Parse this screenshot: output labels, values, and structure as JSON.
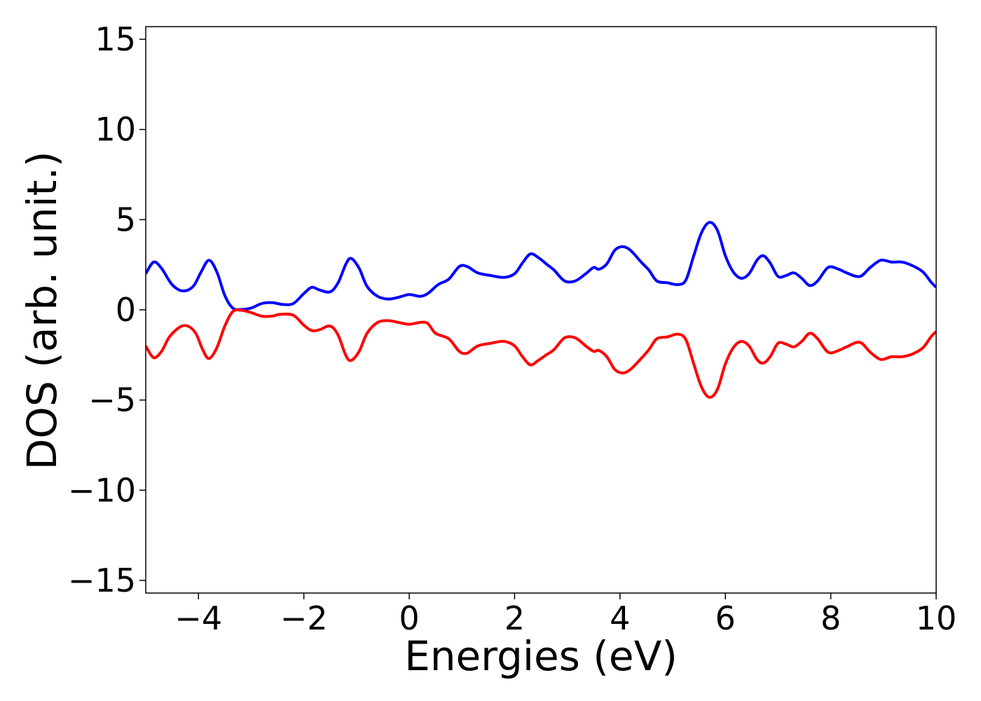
{
  "chart_data": {
    "type": "line",
    "title": "",
    "xlabel": "Energies (eV)",
    "ylabel": "DOS (arb. unit.)",
    "xlim": [
      -5,
      10
    ],
    "ylim": [
      -15.7,
      15.7
    ],
    "xticks": [
      -4,
      -2,
      0,
      2,
      4,
      6,
      8,
      10
    ],
    "yticks": [
      -15,
      -10,
      -5,
      0,
      5,
      10,
      15
    ],
    "xtick_labels": [
      "−4",
      "−2",
      "0",
      "2",
      "4",
      "6",
      "8",
      "10"
    ],
    "ytick_labels": [
      "−15",
      "−10",
      "−5",
      "0",
      "5",
      "10",
      "15"
    ],
    "grid": false,
    "legend": "none",
    "colors": {
      "spin_up": "#0000ff",
      "spin_down": "#ff0000",
      "axes": "#000000",
      "background": "#ffffff"
    },
    "series": [
      {
        "color": "#0000ff",
        "points": [
          [
            -5.0,
            2.0
          ],
          [
            -4.85,
            2.65
          ],
          [
            -4.7,
            2.3
          ],
          [
            -4.5,
            1.4
          ],
          [
            -4.3,
            1.05
          ],
          [
            -4.1,
            1.3
          ],
          [
            -3.95,
            2.1
          ],
          [
            -3.8,
            2.75
          ],
          [
            -3.65,
            2.1
          ],
          [
            -3.5,
            0.8
          ],
          [
            -3.35,
            0.1
          ],
          [
            -3.2,
            0.02
          ],
          [
            -3.0,
            0.1
          ],
          [
            -2.8,
            0.35
          ],
          [
            -2.6,
            0.4
          ],
          [
            -2.4,
            0.3
          ],
          [
            -2.2,
            0.35
          ],
          [
            -2.0,
            0.9
          ],
          [
            -1.85,
            1.25
          ],
          [
            -1.7,
            1.1
          ],
          [
            -1.5,
            1.0
          ],
          [
            -1.35,
            1.5
          ],
          [
            -1.2,
            2.55
          ],
          [
            -1.1,
            2.85
          ],
          [
            -0.95,
            2.3
          ],
          [
            -0.8,
            1.3
          ],
          [
            -0.6,
            0.75
          ],
          [
            -0.4,
            0.6
          ],
          [
            -0.2,
            0.7
          ],
          [
            0.0,
            0.85
          ],
          [
            0.2,
            0.75
          ],
          [
            0.35,
            0.9
          ],
          [
            0.55,
            1.4
          ],
          [
            0.75,
            1.7
          ],
          [
            0.95,
            2.4
          ],
          [
            1.1,
            2.4
          ],
          [
            1.3,
            2.05
          ],
          [
            1.55,
            1.9
          ],
          [
            1.8,
            1.8
          ],
          [
            2.0,
            2.0
          ],
          [
            2.15,
            2.6
          ],
          [
            2.3,
            3.1
          ],
          [
            2.45,
            2.9
          ],
          [
            2.6,
            2.55
          ],
          [
            2.75,
            2.2
          ],
          [
            2.95,
            1.6
          ],
          [
            3.15,
            1.6
          ],
          [
            3.35,
            2.0
          ],
          [
            3.5,
            2.35
          ],
          [
            3.6,
            2.25
          ],
          [
            3.75,
            2.55
          ],
          [
            3.9,
            3.3
          ],
          [
            4.05,
            3.5
          ],
          [
            4.2,
            3.3
          ],
          [
            4.4,
            2.65
          ],
          [
            4.55,
            2.2
          ],
          [
            4.7,
            1.6
          ],
          [
            4.9,
            1.5
          ],
          [
            5.1,
            1.4
          ],
          [
            5.25,
            1.65
          ],
          [
            5.4,
            3.0
          ],
          [
            5.55,
            4.3
          ],
          [
            5.7,
            4.85
          ],
          [
            5.85,
            4.4
          ],
          [
            6.0,
            3.0
          ],
          [
            6.15,
            2.1
          ],
          [
            6.3,
            1.75
          ],
          [
            6.45,
            2.0
          ],
          [
            6.6,
            2.75
          ],
          [
            6.72,
            3.0
          ],
          [
            6.85,
            2.6
          ],
          [
            7.0,
            1.85
          ],
          [
            7.15,
            1.9
          ],
          [
            7.3,
            2.05
          ],
          [
            7.45,
            1.75
          ],
          [
            7.6,
            1.35
          ],
          [
            7.75,
            1.6
          ],
          [
            7.95,
            2.35
          ],
          [
            8.15,
            2.25
          ],
          [
            8.3,
            2.05
          ],
          [
            8.55,
            1.85
          ],
          [
            8.75,
            2.35
          ],
          [
            8.95,
            2.75
          ],
          [
            9.15,
            2.65
          ],
          [
            9.35,
            2.65
          ],
          [
            9.55,
            2.45
          ],
          [
            9.75,
            2.1
          ],
          [
            9.9,
            1.55
          ],
          [
            10.0,
            1.25
          ]
        ]
      },
      {
        "color": "#ff0000",
        "points": [
          [
            -5.0,
            -2.0
          ],
          [
            -4.85,
            -2.65
          ],
          [
            -4.7,
            -2.3
          ],
          [
            -4.55,
            -1.5
          ],
          [
            -4.35,
            -0.95
          ],
          [
            -4.2,
            -0.9
          ],
          [
            -4.05,
            -1.3
          ],
          [
            -3.92,
            -2.2
          ],
          [
            -3.8,
            -2.7
          ],
          [
            -3.65,
            -2.1
          ],
          [
            -3.5,
            -0.9
          ],
          [
            -3.35,
            -0.1
          ],
          [
            -3.2,
            -0.02
          ],
          [
            -3.0,
            -0.15
          ],
          [
            -2.8,
            -0.35
          ],
          [
            -2.6,
            -0.35
          ],
          [
            -2.45,
            -0.25
          ],
          [
            -2.2,
            -0.3
          ],
          [
            -2.0,
            -0.85
          ],
          [
            -1.85,
            -1.15
          ],
          [
            -1.7,
            -1.1
          ],
          [
            -1.5,
            -0.9
          ],
          [
            -1.35,
            -1.4
          ],
          [
            -1.2,
            -2.55
          ],
          [
            -1.1,
            -2.8
          ],
          [
            -0.95,
            -2.3
          ],
          [
            -0.8,
            -1.3
          ],
          [
            -0.6,
            -0.7
          ],
          [
            -0.4,
            -0.6
          ],
          [
            -0.2,
            -0.7
          ],
          [
            0.0,
            -0.8
          ],
          [
            0.2,
            -0.7
          ],
          [
            0.35,
            -0.75
          ],
          [
            0.5,
            -1.3
          ],
          [
            0.75,
            -1.6
          ],
          [
            0.95,
            -2.3
          ],
          [
            1.1,
            -2.4
          ],
          [
            1.3,
            -2.0
          ],
          [
            1.55,
            -1.85
          ],
          [
            1.8,
            -1.75
          ],
          [
            2.0,
            -2.0
          ],
          [
            2.15,
            -2.6
          ],
          [
            2.3,
            -3.05
          ],
          [
            2.45,
            -2.8
          ],
          [
            2.6,
            -2.5
          ],
          [
            2.75,
            -2.2
          ],
          [
            2.95,
            -1.55
          ],
          [
            3.15,
            -1.55
          ],
          [
            3.35,
            -2.0
          ],
          [
            3.5,
            -2.3
          ],
          [
            3.6,
            -2.25
          ],
          [
            3.75,
            -2.6
          ],
          [
            3.9,
            -3.3
          ],
          [
            4.05,
            -3.5
          ],
          [
            4.2,
            -3.3
          ],
          [
            4.4,
            -2.7
          ],
          [
            4.55,
            -2.2
          ],
          [
            4.7,
            -1.6
          ],
          [
            4.9,
            -1.5
          ],
          [
            5.1,
            -1.35
          ],
          [
            5.25,
            -1.65
          ],
          [
            5.4,
            -3.0
          ],
          [
            5.55,
            -4.3
          ],
          [
            5.7,
            -4.85
          ],
          [
            5.85,
            -4.4
          ],
          [
            6.0,
            -3.0
          ],
          [
            6.15,
            -2.1
          ],
          [
            6.3,
            -1.75
          ],
          [
            6.45,
            -2.0
          ],
          [
            6.6,
            -2.75
          ],
          [
            6.72,
            -2.95
          ],
          [
            6.85,
            -2.6
          ],
          [
            7.0,
            -1.85
          ],
          [
            7.15,
            -1.9
          ],
          [
            7.3,
            -2.05
          ],
          [
            7.45,
            -1.75
          ],
          [
            7.6,
            -1.3
          ],
          [
            7.75,
            -1.6
          ],
          [
            7.95,
            -2.35
          ],
          [
            8.15,
            -2.25
          ],
          [
            8.3,
            -2.05
          ],
          [
            8.55,
            -1.8
          ],
          [
            8.75,
            -2.35
          ],
          [
            8.95,
            -2.75
          ],
          [
            9.15,
            -2.6
          ],
          [
            9.35,
            -2.6
          ],
          [
            9.55,
            -2.45
          ],
          [
            9.75,
            -2.1
          ],
          [
            9.9,
            -1.5
          ],
          [
            10.0,
            -1.2
          ]
        ]
      }
    ]
  }
}
